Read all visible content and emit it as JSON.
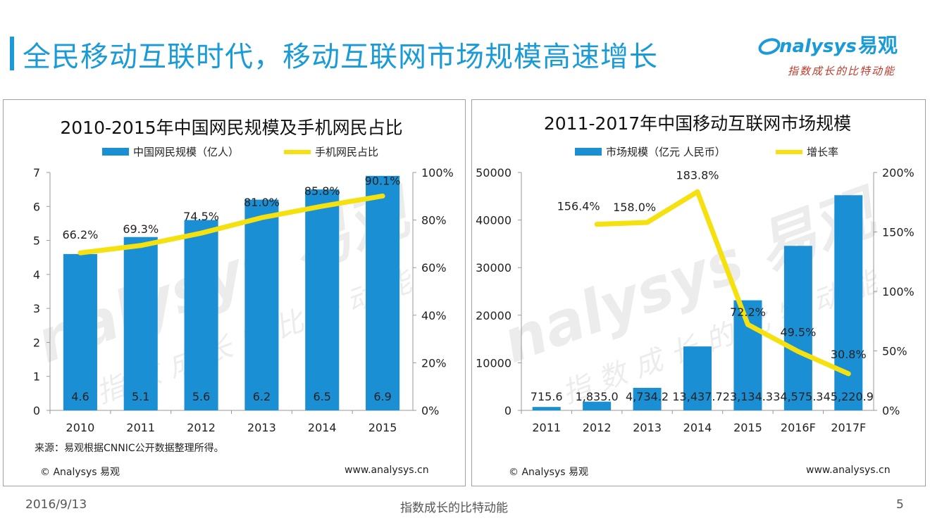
{
  "header": {
    "title": "全民移动互联时代，移动互联网市场规模高速增长",
    "logo_text": "nalysys",
    "logo_cn": "易观",
    "logo_slogan": "指数成长的比特动能"
  },
  "watermark": {
    "brand": "nalysys 易观",
    "slogan": "指数成长的比特动能"
  },
  "left_panel": {
    "source": "来源：易观根据CNNIC公开数据整理所得。",
    "copyright": "© Analysys 易观",
    "url": "www.analysys.cn"
  },
  "right_panel": {
    "copyright": "© Analysys 易观",
    "url": "www.analysys.cn"
  },
  "footer": {
    "date": "2016/9/13",
    "slogan": "指数成长的比特动能",
    "page": "5"
  },
  "colors": {
    "bar": "#1a8fd4",
    "line": "#f5e10f",
    "title": "#1a9bd7"
  },
  "chart_data": [
    {
      "type": "bar",
      "title": "2010-2015年中国网民规模及手机网民占比",
      "categories": [
        "2010",
        "2011",
        "2012",
        "2013",
        "2014",
        "2015"
      ],
      "series": [
        {
          "name": "中国网民规模（亿人）",
          "type": "bar",
          "axis": "left",
          "values": [
            4.6,
            5.1,
            5.6,
            6.2,
            6.5,
            6.9
          ],
          "labels": [
            "4.6",
            "5.1",
            "5.6",
            "6.2",
            "6.5",
            "6.9"
          ]
        },
        {
          "name": "手机网民占比",
          "type": "line",
          "axis": "right",
          "values": [
            66.2,
            69.3,
            74.5,
            81.0,
            85.8,
            90.1
          ],
          "labels": [
            "66.2%",
            "69.3%",
            "74.5%",
            "81.0%",
            "85.8%",
            "90.1%"
          ]
        }
      ],
      "ylim": [
        0,
        7
      ],
      "yticks": [
        "0",
        "1",
        "2",
        "3",
        "4",
        "5",
        "6",
        "7"
      ],
      "y2lim": [
        0,
        100
      ],
      "y2ticks": [
        "0%",
        "20%",
        "40%",
        "60%",
        "80%",
        "100%"
      ],
      "legend": "top"
    },
    {
      "type": "bar",
      "title": "2011-2017年中国移动互联网市场规模",
      "categories": [
        "2011",
        "2012",
        "2013",
        "2014",
        "2015",
        "2016F",
        "2017F"
      ],
      "series": [
        {
          "name": "市场规模（亿元 人民币）",
          "type": "bar",
          "axis": "left",
          "values": [
            715.6,
            1835.0,
            4734.2,
            13437.7,
            23134.3,
            34575.3,
            45220.9
          ],
          "labels": [
            "715.6",
            "1,835.0",
            "4,734.2",
            "13,437.7",
            "23,134.3",
            "34,575.3",
            "45,220.9"
          ]
        },
        {
          "name": "增长率",
          "type": "line",
          "axis": "right",
          "values": [
            null,
            156.4,
            158.0,
            183.8,
            72.2,
            49.5,
            30.8
          ],
          "labels": [
            "",
            "156.4%",
            "158.0%",
            "183.8%",
            "72.2%",
            "49.5%",
            "30.8%"
          ]
        }
      ],
      "ylim": [
        0,
        50000
      ],
      "yticks": [
        "0",
        "10000",
        "20000",
        "30000",
        "40000",
        "50000"
      ],
      "y2lim": [
        0,
        200
      ],
      "y2ticks": [
        "0%",
        "50%",
        "100%",
        "150%",
        "200%"
      ],
      "legend": "top"
    }
  ]
}
